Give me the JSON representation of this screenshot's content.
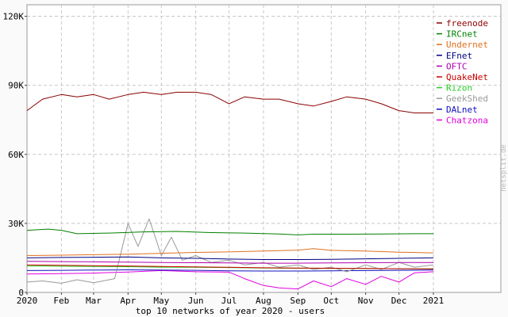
{
  "chart_data": {
    "type": "line",
    "title": "top 10 networks of year 2020 - users",
    "xlabel": "",
    "ylabel": "",
    "x_domain": [
      "2020-01-01",
      "2021-01-01"
    ],
    "x_ticks": [
      {
        "date": "2020-01-01",
        "label": "2020"
      },
      {
        "date": "2020-02-01",
        "label": "Feb"
      },
      {
        "date": "2020-03-01",
        "label": "Mar"
      },
      {
        "date": "2020-04-01",
        "label": "Apr"
      },
      {
        "date": "2020-05-01",
        "label": "May"
      },
      {
        "date": "2020-06-01",
        "label": "Jun"
      },
      {
        "date": "2020-07-01",
        "label": "Jul"
      },
      {
        "date": "2020-08-01",
        "label": "Aug"
      },
      {
        "date": "2020-09-01",
        "label": "Sep"
      },
      {
        "date": "2020-10-01",
        "label": "Oct"
      },
      {
        "date": "2020-11-01",
        "label": "Nov"
      },
      {
        "date": "2020-12-01",
        "label": "Dec"
      },
      {
        "date": "2021-01-01",
        "label": "2021"
      }
    ],
    "ylim": [
      0,
      125000
    ],
    "y_ticks": [
      {
        "value": 0,
        "label": "0"
      },
      {
        "value": 30000,
        "label": "30K"
      },
      {
        "value": 60000,
        "label": "60K"
      },
      {
        "value": 90000,
        "label": "90K"
      },
      {
        "value": 120000,
        "label": "120K"
      }
    ],
    "grid": true,
    "legend_position": "top-right",
    "watermark": "netsplit.de",
    "series": [
      {
        "name": "freenode",
        "color": "#8b0000",
        "points": [
          [
            "2020-01-01",
            79000
          ],
          [
            "2020-01-15",
            84000
          ],
          [
            "2020-02-01",
            86000
          ],
          [
            "2020-02-15",
            85000
          ],
          [
            "2020-03-01",
            86000
          ],
          [
            "2020-03-15",
            84000
          ],
          [
            "2020-04-01",
            86000
          ],
          [
            "2020-04-15",
            87000
          ],
          [
            "2020-05-01",
            86000
          ],
          [
            "2020-05-15",
            87000
          ],
          [
            "2020-06-01",
            87000
          ],
          [
            "2020-06-15",
            86000
          ],
          [
            "2020-07-01",
            82000
          ],
          [
            "2020-07-15",
            85000
          ],
          [
            "2020-08-01",
            84000
          ],
          [
            "2020-08-15",
            84000
          ],
          [
            "2020-09-01",
            82000
          ],
          [
            "2020-09-15",
            81000
          ],
          [
            "2020-10-01",
            83000
          ],
          [
            "2020-10-15",
            85000
          ],
          [
            "2020-11-01",
            84000
          ],
          [
            "2020-11-15",
            82000
          ],
          [
            "2020-12-01",
            79000
          ],
          [
            "2020-12-15",
            78000
          ],
          [
            "2021-01-01",
            78000
          ]
        ]
      },
      {
        "name": "IRCnet",
        "color": "#008000",
        "points": [
          [
            "2020-01-01",
            27000
          ],
          [
            "2020-01-20",
            27500
          ],
          [
            "2020-02-01",
            27000
          ],
          [
            "2020-02-15",
            25500
          ],
          [
            "2020-03-15",
            25800
          ],
          [
            "2020-04-15",
            26300
          ],
          [
            "2020-05-15",
            26500
          ],
          [
            "2020-06-15",
            26000
          ],
          [
            "2020-07-15",
            25800
          ],
          [
            "2020-08-15",
            25400
          ],
          [
            "2020-09-01",
            25000
          ],
          [
            "2020-09-15",
            25300
          ],
          [
            "2020-10-15",
            25300
          ],
          [
            "2020-11-15",
            25400
          ],
          [
            "2020-12-15",
            25500
          ],
          [
            "2021-01-01",
            25500
          ]
        ]
      },
      {
        "name": "Undernet",
        "color": "#e07020",
        "points": [
          [
            "2020-01-01",
            16000
          ],
          [
            "2020-02-01",
            16200
          ],
          [
            "2020-03-01",
            16400
          ],
          [
            "2020-04-01",
            16600
          ],
          [
            "2020-05-01",
            17000
          ],
          [
            "2020-06-01",
            17400
          ],
          [
            "2020-07-01",
            17600
          ],
          [
            "2020-08-01",
            18000
          ],
          [
            "2020-09-01",
            18400
          ],
          [
            "2020-09-15",
            19000
          ],
          [
            "2020-10-01",
            18300
          ],
          [
            "2020-11-01",
            18000
          ],
          [
            "2020-12-01",
            17500
          ],
          [
            "2021-01-01",
            17200
          ]
        ]
      },
      {
        "name": "EFnet",
        "color": "#000080",
        "points": [
          [
            "2020-01-01",
            15000
          ],
          [
            "2020-02-01",
            15200
          ],
          [
            "2020-03-01",
            15300
          ],
          [
            "2020-04-01",
            15400
          ],
          [
            "2020-05-01",
            15000
          ],
          [
            "2020-06-01",
            14800
          ],
          [
            "2020-07-01",
            14500
          ],
          [
            "2020-08-01",
            14300
          ],
          [
            "2020-09-01",
            14300
          ],
          [
            "2020-10-01",
            14400
          ],
          [
            "2020-11-01",
            14600
          ],
          [
            "2020-12-01",
            14800
          ],
          [
            "2021-01-01",
            15000
          ]
        ]
      },
      {
        "name": "OFTC",
        "color": "#b000b0",
        "points": [
          [
            "2020-01-01",
            13500
          ],
          [
            "2020-02-01",
            13400
          ],
          [
            "2020-03-01",
            13300
          ],
          [
            "2020-04-01",
            13200
          ],
          [
            "2020-05-01",
            13000
          ],
          [
            "2020-06-01",
            12900
          ],
          [
            "2020-07-01",
            12800
          ],
          [
            "2020-08-01",
            12700
          ],
          [
            "2020-09-01",
            12700
          ],
          [
            "2020-10-01",
            12800
          ],
          [
            "2020-11-01",
            12900
          ],
          [
            "2020-12-01",
            13000
          ],
          [
            "2021-01-01",
            13000
          ]
        ]
      },
      {
        "name": "QuakeNet",
        "color": "#cc0000",
        "points": [
          [
            "2020-01-01",
            12000
          ],
          [
            "2020-02-01",
            11800
          ],
          [
            "2020-03-01",
            11600
          ],
          [
            "2020-04-01",
            11500
          ],
          [
            "2020-05-01",
            11300
          ],
          [
            "2020-06-01",
            11100
          ],
          [
            "2020-07-01",
            10900
          ],
          [
            "2020-08-01",
            10700
          ],
          [
            "2020-09-01",
            10600
          ],
          [
            "2020-10-01",
            10500
          ],
          [
            "2020-11-01",
            10400
          ],
          [
            "2020-12-01",
            10300
          ],
          [
            "2021-01-01",
            10200
          ]
        ]
      },
      {
        "name": "Rizon",
        "color": "#22cc22",
        "points": [
          [
            "2020-01-01",
            11500
          ],
          [
            "2020-02-01",
            11400
          ],
          [
            "2020-03-01",
            11300
          ],
          [
            "2020-04-01",
            11200
          ],
          [
            "2020-05-01",
            11000
          ],
          [
            "2020-06-01",
            10900
          ],
          [
            "2020-07-01",
            10800
          ],
          [
            "2020-08-01",
            10600
          ],
          [
            "2020-09-01",
            10500
          ],
          [
            "2020-10-01",
            10400
          ],
          [
            "2020-11-01",
            10400
          ],
          [
            "2020-12-01",
            10300
          ],
          [
            "2021-01-01",
            10300
          ]
        ]
      },
      {
        "name": "GeekShed",
        "color": "#999999",
        "points": [
          [
            "2020-01-01",
            4500
          ],
          [
            "2020-01-15",
            5000
          ],
          [
            "2020-02-01",
            4000
          ],
          [
            "2020-02-15",
            5500
          ],
          [
            "2020-03-01",
            4200
          ],
          [
            "2020-03-20",
            6000
          ],
          [
            "2020-04-01",
            30000
          ],
          [
            "2020-04-10",
            20000
          ],
          [
            "2020-04-20",
            32000
          ],
          [
            "2020-05-01",
            16000
          ],
          [
            "2020-05-10",
            24000
          ],
          [
            "2020-05-20",
            14000
          ],
          [
            "2020-06-01",
            16000
          ],
          [
            "2020-06-15",
            13000
          ],
          [
            "2020-07-01",
            14000
          ],
          [
            "2020-07-15",
            12000
          ],
          [
            "2020-08-01",
            13000
          ],
          [
            "2020-08-15",
            11000
          ],
          [
            "2020-09-01",
            12000
          ],
          [
            "2020-09-15",
            10000
          ],
          [
            "2020-10-01",
            11000
          ],
          [
            "2020-10-15",
            9000
          ],
          [
            "2020-11-01",
            12000
          ],
          [
            "2020-11-15",
            10000
          ],
          [
            "2020-12-01",
            13000
          ],
          [
            "2020-12-15",
            11000
          ],
          [
            "2021-01-01",
            12000
          ]
        ]
      },
      {
        "name": "DALnet",
        "color": "#1010c0",
        "points": [
          [
            "2020-01-01",
            9500
          ],
          [
            "2020-02-01",
            9600
          ],
          [
            "2020-03-01",
            9700
          ],
          [
            "2020-04-01",
            9800
          ],
          [
            "2020-05-01",
            9700
          ],
          [
            "2020-06-01",
            9600
          ],
          [
            "2020-07-01",
            9400
          ],
          [
            "2020-08-01",
            9300
          ],
          [
            "2020-09-01",
            9300
          ],
          [
            "2020-10-01",
            9400
          ],
          [
            "2020-11-01",
            9500
          ],
          [
            "2020-12-01",
            9600
          ],
          [
            "2021-01-01",
            9700
          ]
        ]
      },
      {
        "name": "Chatzona",
        "color": "#e000e0",
        "points": [
          [
            "2020-01-01",
            8000
          ],
          [
            "2020-02-01",
            8200
          ],
          [
            "2020-03-01",
            8400
          ],
          [
            "2020-04-01",
            8900
          ],
          [
            "2020-05-01",
            9500
          ],
          [
            "2020-06-01",
            9000
          ],
          [
            "2020-07-01",
            8800
          ],
          [
            "2020-07-15",
            6000
          ],
          [
            "2020-08-01",
            3000
          ],
          [
            "2020-08-15",
            2000
          ],
          [
            "2020-09-01",
            1500
          ],
          [
            "2020-09-15",
            5000
          ],
          [
            "2020-10-01",
            2500
          ],
          [
            "2020-10-15",
            6000
          ],
          [
            "2020-11-01",
            3500
          ],
          [
            "2020-11-15",
            7000
          ],
          [
            "2020-12-01",
            4500
          ],
          [
            "2020-12-15",
            8500
          ],
          [
            "2021-01-01",
            9000
          ]
        ]
      }
    ]
  }
}
